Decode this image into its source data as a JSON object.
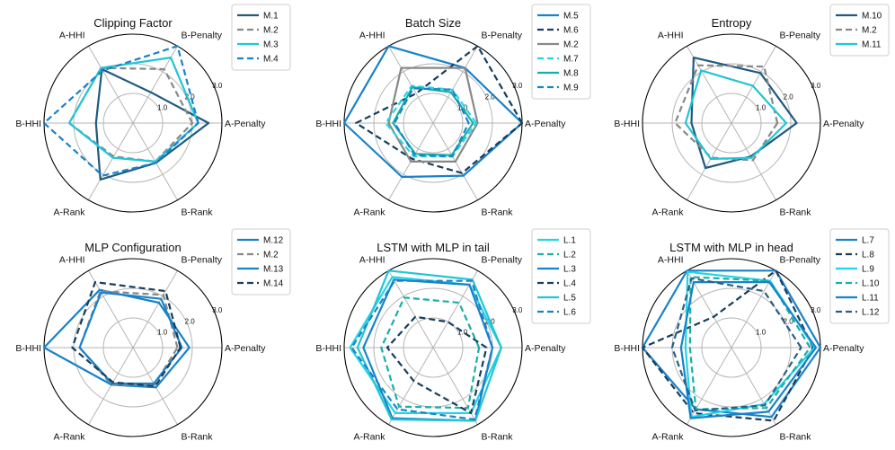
{
  "figure": {
    "axis_labels": [
      "A-Penalty",
      "B-Penalty",
      "A-HHI",
      "B-HHI",
      "A-Rank",
      "B-Rank"
    ],
    "radial_ticks": [
      "1.0",
      "2.0",
      "3.0"
    ],
    "range": [
      0,
      3
    ]
  },
  "chart_data": [
    {
      "type": "radar",
      "title": "Clipping Factor",
      "categories": [
        "A-Penalty",
        "B-Penalty",
        "A-HHI",
        "B-HHI",
        "A-Rank",
        "B-Rank"
      ],
      "rlim": [
        0,
        3
      ],
      "series": [
        {
          "name": "M.1",
          "color": "#1f5a80",
          "dash": "solid",
          "values": [
            2.55,
            1.2,
            2.1,
            1.25,
            2.2,
            1.55
          ]
        },
        {
          "name": "M.2",
          "color": "#888888",
          "dash": "dashed",
          "values": [
            2.0,
            2.1,
            2.15,
            2.15,
            1.3,
            1.5
          ]
        },
        {
          "name": "M.3",
          "color": "#22c5d5",
          "dash": "solid",
          "values": [
            2.2,
            2.55,
            2.15,
            2.15,
            1.35,
            1.5
          ]
        },
        {
          "name": "M.4",
          "color": "#1a82c9",
          "dash": "dashed",
          "values": [
            2.2,
            3.0,
            2.05,
            3.0,
            2.05,
            1.55
          ]
        }
      ]
    },
    {
      "type": "radar",
      "title": "Batch Size",
      "categories": [
        "A-Penalty",
        "B-Penalty",
        "A-HHI",
        "B-HHI",
        "A-Rank",
        "B-Rank"
      ],
      "rlim": [
        0,
        3
      ],
      "series": [
        {
          "name": "M.5",
          "color": "#1a82c9",
          "dash": "solid",
          "values": [
            3.0,
            2.15,
            3.0,
            3.0,
            2.1,
            2.05
          ]
        },
        {
          "name": "M.6",
          "color": "#163e5e",
          "dash": "dashed",
          "values": [
            3.0,
            3.0,
            1.15,
            2.6,
            1.4,
            1.95
          ]
        },
        {
          "name": "M.2",
          "color": "#888888",
          "dash": "solid",
          "values": [
            1.5,
            2.15,
            2.15,
            1.5,
            1.5,
            1.5
          ]
        },
        {
          "name": "M.7",
          "color": "#22d5e6",
          "dash": "dashed",
          "values": [
            1.45,
            1.3,
            1.45,
            1.6,
            1.3,
            1.3
          ]
        },
        {
          "name": "M.8",
          "color": "#17b0a5",
          "dash": "solid",
          "values": [
            1.35,
            1.2,
            1.4,
            1.35,
            1.2,
            1.25
          ]
        },
        {
          "name": "M.9",
          "color": "#1a82c9",
          "dash": "dashed",
          "values": [
            1.2,
            1.3,
            1.35,
            1.3,
            1.25,
            1.3
          ]
        }
      ]
    },
    {
      "type": "radar",
      "title": "Entropy",
      "categories": [
        "A-Penalty",
        "B-Penalty",
        "A-HHI",
        "B-HHI",
        "A-Rank",
        "B-Rank"
      ],
      "rlim": [
        0,
        3
      ],
      "series": [
        {
          "name": "M.10",
          "color": "#1f5a80",
          "dash": "solid",
          "values": [
            2.2,
            1.95,
            2.55,
            1.35,
            1.75,
            1.3
          ]
        },
        {
          "name": "M.2",
          "color": "#888888",
          "dash": "dashed",
          "values": [
            1.55,
            2.2,
            2.25,
            1.9,
            1.35,
            1.45
          ]
        },
        {
          "name": "M.11",
          "color": "#22c5d5",
          "dash": "solid",
          "values": [
            1.85,
            1.45,
            2.05,
            1.55,
            1.4,
            1.35
          ]
        }
      ]
    },
    {
      "type": "radar",
      "title": "MLP Configuration",
      "categories": [
        "A-Penalty",
        "B-Penalty",
        "A-HHI",
        "B-HHI",
        "A-Rank",
        "B-Rank"
      ],
      "rlim": [
        0,
        3
      ],
      "series": [
        {
          "name": "M.12",
          "color": "#1a82c9",
          "dash": "solid",
          "values": [
            1.9,
            1.75,
            2.25,
            3.0,
            1.45,
            1.55
          ]
        },
        {
          "name": "M.2",
          "color": "#888888",
          "dash": "dashed",
          "values": [
            1.5,
            2.05,
            2.2,
            1.8,
            1.45,
            1.45
          ]
        },
        {
          "name": "M.13",
          "color": "#1a82c9",
          "dash": "solid",
          "values": [
            1.65,
            1.9,
            2.15,
            1.8,
            1.4,
            1.4
          ]
        },
        {
          "name": "M.14",
          "color": "#163e5e",
          "dash": "dashed",
          "values": [
            1.6,
            2.2,
            2.55,
            2.05,
            1.35,
            1.5
          ]
        }
      ]
    },
    {
      "type": "radar",
      "title": "LSTM with MLP in tail",
      "categories": [
        "A-Penalty",
        "B-Penalty",
        "A-HHI",
        "B-HHI",
        "A-Rank",
        "B-Rank"
      ],
      "rlim": [
        0,
        3
      ],
      "series": [
        {
          "name": "L.1",
          "color": "#22d5e6",
          "dash": "solid",
          "values": [
            2.3,
            2.45,
            2.75,
            2.8,
            2.55,
            2.55
          ]
        },
        {
          "name": "L.2",
          "color": "#17b0a5",
          "dash": "dashed",
          "values": [
            1.55,
            1.75,
            1.95,
            1.75,
            2.3,
            2.35
          ]
        },
        {
          "name": "L.3",
          "color": "#1a82c9",
          "dash": "solid",
          "values": [
            2.0,
            2.45,
            2.65,
            2.35,
            2.75,
            2.85
          ]
        },
        {
          "name": "L.4",
          "color": "#163e5e",
          "dash": "dashed",
          "values": [
            1.8,
            1.0,
            1.2,
            1.55,
            1.3,
            2.55
          ]
        },
        {
          "name": "L.5",
          "color": "#22c5d5",
          "dash": "solid",
          "values": [
            2.3,
            2.65,
            3.0,
            2.55,
            2.8,
            2.85
          ]
        },
        {
          "name": "L.6",
          "color": "#1a82c9",
          "dash": "dashed",
          "values": [
            2.0,
            2.6,
            2.6,
            2.75,
            2.4,
            2.8
          ]
        }
      ]
    },
    {
      "type": "radar",
      "title": "LSTM with MLP in head",
      "categories": [
        "A-Penalty",
        "B-Penalty",
        "A-HHI",
        "B-HHI",
        "A-Rank",
        "B-Rank"
      ],
      "rlim": [
        0,
        3
      ],
      "series": [
        {
          "name": "L.7",
          "color": "#1a82c9",
          "dash": "solid",
          "values": [
            3.0,
            3.0,
            3.0,
            3.0,
            2.4,
            2.7
          ]
        },
        {
          "name": "L.8",
          "color": "#163e5e",
          "dash": "dashed",
          "values": [
            2.75,
            3.0,
            1.2,
            3.0,
            2.55,
            2.85
          ]
        },
        {
          "name": "L.9",
          "color": "#22d5e6",
          "dash": "solid",
          "values": [
            2.8,
            2.6,
            2.95,
            1.55,
            2.7,
            2.2
          ]
        },
        {
          "name": "L.10",
          "color": "#17b0a5",
          "dash": "dashed",
          "values": [
            2.65,
            2.6,
            2.75,
            1.4,
            2.4,
            2.35
          ]
        },
        {
          "name": "L.11",
          "color": "#1a82c9",
          "dash": "solid",
          "values": [
            2.85,
            2.55,
            2.55,
            1.7,
            2.75,
            2.5
          ]
        },
        {
          "name": "L.12",
          "color": "#2a5f85",
          "dash": "dashed",
          "values": [
            2.35,
            2.2,
            2.7,
            2.0,
            2.45,
            2.25
          ]
        }
      ]
    }
  ]
}
